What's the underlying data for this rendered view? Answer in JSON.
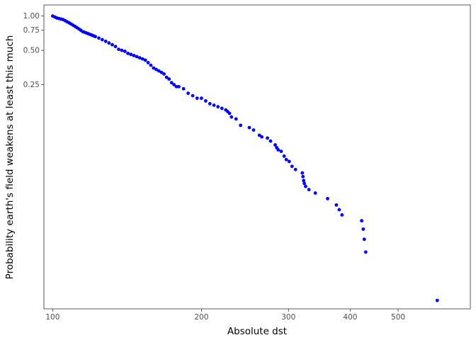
{
  "chart_data": {
    "type": "scatter",
    "xlabel": "Absolute dst",
    "ylabel": "Probability earth's field weakens at least this much",
    "x_scale": "log",
    "y_scale": "log",
    "xlim": [
      96,
      700
    ],
    "ylim": [
      0.0027,
      1.25
    ],
    "x_ticks": [
      100,
      200,
      300,
      400,
      500
    ],
    "y_ticks": [
      1.0,
      0.75,
      0.5,
      0.25
    ],
    "y_tick_labels": [
      "1.00",
      "0.75",
      "0.50",
      "0.25"
    ],
    "grid": false,
    "legend": "none",
    "point_color": "#0000ff",
    "series": [
      {
        "x": [
          100,
          101,
          102,
          103,
          104,
          105,
          106,
          107,
          108,
          109,
          110,
          111,
          112,
          113,
          114,
          115,
          116,
          117,
          118,
          119,
          120,
          121,
          122,
          124,
          126,
          128,
          130,
          132,
          134,
          136,
          138,
          140,
          142,
          144,
          146,
          148,
          150,
          152,
          154,
          156,
          158,
          160,
          162,
          164,
          166,
          168,
          170,
          172,
          174,
          176,
          178,
          180,
          184,
          188,
          192,
          196,
          200,
          204,
          208,
          212,
          216,
          220,
          224,
          226,
          228,
          230,
          235,
          240,
          250,
          255,
          262,
          265,
          272,
          276,
          282,
          284,
          286,
          290,
          294,
          297,
          301,
          305,
          310,
          320,
          321,
          322,
          323,
          325,
          330,
          340,
          360,
          375,
          380,
          385,
          422,
          425,
          427,
          430,
          600
        ],
        "y": [
          1.0,
          0.98,
          0.96,
          0.95,
          0.94,
          0.93,
          0.91,
          0.89,
          0.87,
          0.85,
          0.83,
          0.81,
          0.79,
          0.77,
          0.75,
          0.73,
          0.72,
          0.71,
          0.7,
          0.69,
          0.68,
          0.67,
          0.66,
          0.64,
          0.62,
          0.6,
          0.58,
          0.56,
          0.54,
          0.51,
          0.5,
          0.49,
          0.47,
          0.46,
          0.45,
          0.44,
          0.43,
          0.42,
          0.41,
          0.39,
          0.37,
          0.35,
          0.34,
          0.33,
          0.32,
          0.31,
          0.29,
          0.28,
          0.26,
          0.25,
          0.24,
          0.24,
          0.23,
          0.21,
          0.2,
          0.19,
          0.19,
          0.18,
          0.17,
          0.165,
          0.16,
          0.155,
          0.15,
          0.145,
          0.14,
          0.13,
          0.125,
          0.11,
          0.105,
          0.1,
          0.09,
          0.087,
          0.085,
          0.08,
          0.074,
          0.07,
          0.067,
          0.065,
          0.059,
          0.055,
          0.053,
          0.048,
          0.045,
          0.042,
          0.039,
          0.036,
          0.034,
          0.032,
          0.03,
          0.028,
          0.025,
          0.022,
          0.02,
          0.018,
          0.016,
          0.0135,
          0.011,
          0.0085,
          0.0032
        ]
      }
    ]
  }
}
